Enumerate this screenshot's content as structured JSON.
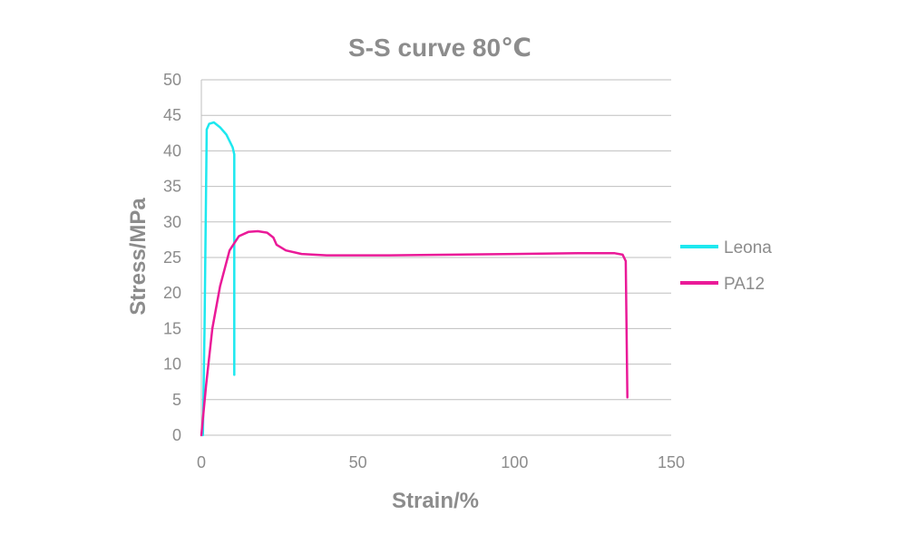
{
  "chart_data": {
    "type": "line",
    "title": "S-S curve 80℃",
    "xlabel": "Strain/%",
    "ylabel": "Stress/MPa",
    "xlim": [
      0,
      150
    ],
    "ylim": [
      0,
      50
    ],
    "x_ticks": [
      0,
      50,
      100,
      150
    ],
    "y_ticks": [
      0,
      5,
      10,
      15,
      20,
      25,
      30,
      35,
      40,
      45,
      50
    ],
    "grid": "horizontal",
    "legend_position": "right",
    "series": [
      {
        "name": "Leona",
        "color": "#1ee8ef",
        "points": [
          [
            0.5,
            0
          ],
          [
            1.0,
            15
          ],
          [
            1.4,
            30
          ],
          [
            1.6,
            38
          ],
          [
            1.7,
            43
          ],
          [
            2.5,
            43.8
          ],
          [
            4.0,
            44.0
          ],
          [
            6.0,
            43.3
          ],
          [
            8.0,
            42.3
          ],
          [
            10.0,
            40.5
          ],
          [
            10.5,
            39.5
          ],
          [
            10.5,
            8.5
          ]
        ]
      },
      {
        "name": "PA12",
        "color": "#ea1a98",
        "points": [
          [
            0,
            0
          ],
          [
            1.5,
            7
          ],
          [
            3.5,
            15
          ],
          [
            6,
            21
          ],
          [
            9,
            26
          ],
          [
            12,
            28
          ],
          [
            15,
            28.6
          ],
          [
            18,
            28.7
          ],
          [
            21,
            28.5
          ],
          [
            23,
            27.8
          ],
          [
            24,
            26.8
          ],
          [
            27,
            26
          ],
          [
            32,
            25.5
          ],
          [
            40,
            25.3
          ],
          [
            60,
            25.3
          ],
          [
            80,
            25.4
          ],
          [
            100,
            25.5
          ],
          [
            120,
            25.6
          ],
          [
            132,
            25.6
          ],
          [
            134.5,
            25.4
          ],
          [
            135.5,
            24.5
          ],
          [
            136,
            5.3
          ]
        ]
      }
    ]
  }
}
